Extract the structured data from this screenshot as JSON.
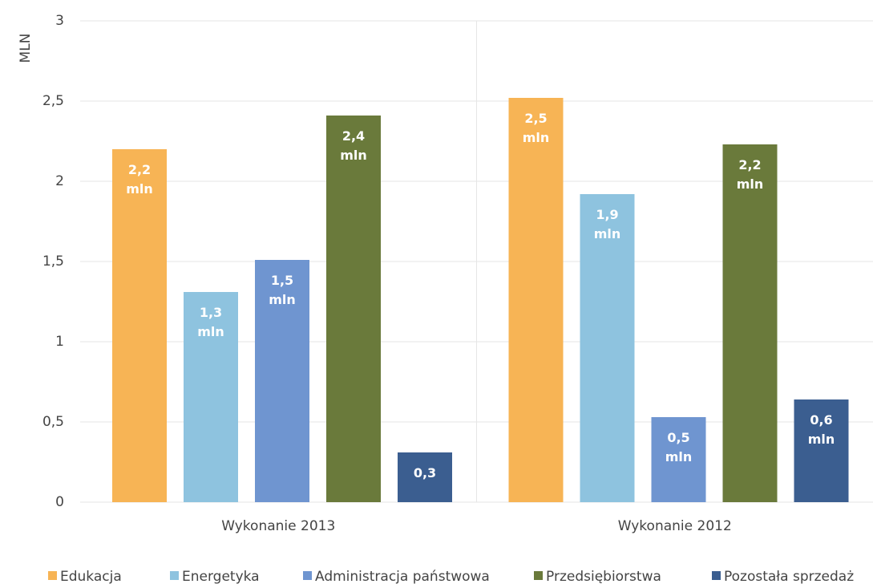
{
  "chart_data": {
    "type": "bar",
    "y_label": "MLN",
    "categories": [
      "Wykonanie 2013",
      "Wykonanie 2012"
    ],
    "series": [
      {
        "name": "Edukacja",
        "color": "#f7b455",
        "values": [
          2.2,
          2.52
        ],
        "value_labels": [
          "2,2 mln",
          "2,5 mln"
        ]
      },
      {
        "name": "Energetyka",
        "color": "#8ec3df",
        "values": [
          1.31,
          1.92
        ],
        "value_labels": [
          "1,3 mln",
          "1,9 mln"
        ]
      },
      {
        "name": "Administracja państwowa",
        "color": "#6f95d0",
        "values": [
          1.51,
          0.53
        ],
        "value_labels": [
          "1,5 mln",
          "0,5 mln"
        ]
      },
      {
        "name": "Przedsiębiorstwa",
        "color": "#6a7a3b",
        "values": [
          2.41,
          2.23
        ],
        "value_labels": [
          "2,4 mln",
          "2,2 mln"
        ]
      },
      {
        "name": "Pozostała sprzedaż",
        "color": "#3b5e90",
        "values": [
          0.31,
          0.64
        ],
        "value_labels": [
          "0,3",
          "0,6 mln"
        ]
      }
    ],
    "ylim": [
      0,
      3
    ],
    "yticks": [
      0,
      {
        "value": 0.5,
        "label": "0,5"
      },
      1,
      {
        "value": 1.5,
        "label": "1,5"
      },
      2,
      {
        "value": 2.5,
        "label": "2,5"
      },
      3
    ],
    "grid": true
  }
}
